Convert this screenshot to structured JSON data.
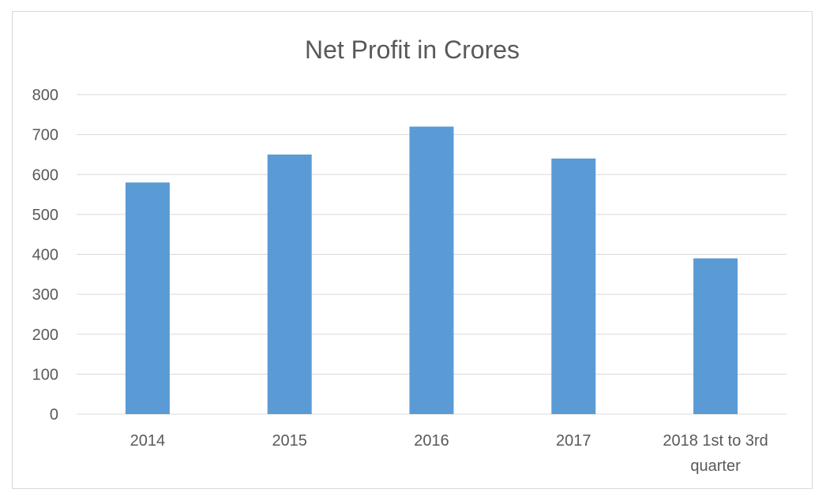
{
  "chart_data": {
    "type": "bar",
    "title": "Net Profit in Crores",
    "categories": [
      "2014",
      "2015",
      "2016",
      "2017",
      "2018 1st to 3rd quarter"
    ],
    "category_lines": [
      [
        "2014"
      ],
      [
        "2015"
      ],
      [
        "2016"
      ],
      [
        "2017"
      ],
      [
        "2018 1st to 3rd",
        "quarter"
      ]
    ],
    "values": [
      580,
      650,
      720,
      640,
      390
    ],
    "xlabel": "",
    "ylabel": "",
    "ylim": [
      0,
      800
    ],
    "yticks": [
      0,
      100,
      200,
      300,
      400,
      500,
      600,
      700,
      800
    ],
    "grid": true,
    "legend": "none",
    "bar_color": "#5b9bd5"
  }
}
